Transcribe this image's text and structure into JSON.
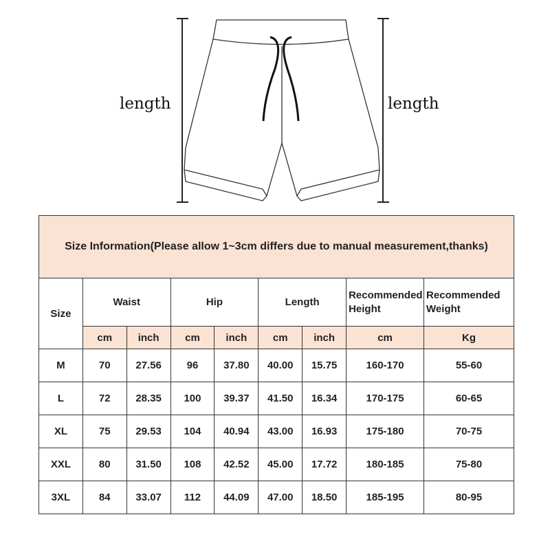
{
  "diagram": {
    "left_label": "length",
    "right_label": "length"
  },
  "table": {
    "title": "Size Information(Please allow 1~3cm differs due to manual measurement,thanks)",
    "headers": {
      "size": "Size",
      "waist": "Waist",
      "hip": "Hip",
      "length": "Length",
      "height": "Recommended Height",
      "weight": "Recommended Weight"
    },
    "units": [
      "cm",
      "inch",
      "cm",
      "inch",
      "cm",
      "inch",
      "cm",
      "Kg"
    ],
    "rows": [
      [
        "M",
        "70",
        "27.56",
        "96",
        "37.80",
        "40.00",
        "15.75",
        "160-170",
        "55-60"
      ],
      [
        "L",
        "72",
        "28.35",
        "100",
        "39.37",
        "41.50",
        "16.34",
        "170-175",
        "60-65"
      ],
      [
        "XL",
        "75",
        "29.53",
        "104",
        "40.94",
        "43.00",
        "16.93",
        "175-180",
        "70-75"
      ],
      [
        "XXL",
        "80",
        "31.50",
        "108",
        "42.52",
        "45.00",
        "17.72",
        "180-185",
        "75-80"
      ],
      [
        "3XL",
        "84",
        "33.07",
        "112",
        "44.09",
        "47.00",
        "18.50",
        "185-195",
        "80-95"
      ]
    ]
  },
  "colors": {
    "header_fill": "#fbe3d4",
    "border": "#333333"
  }
}
